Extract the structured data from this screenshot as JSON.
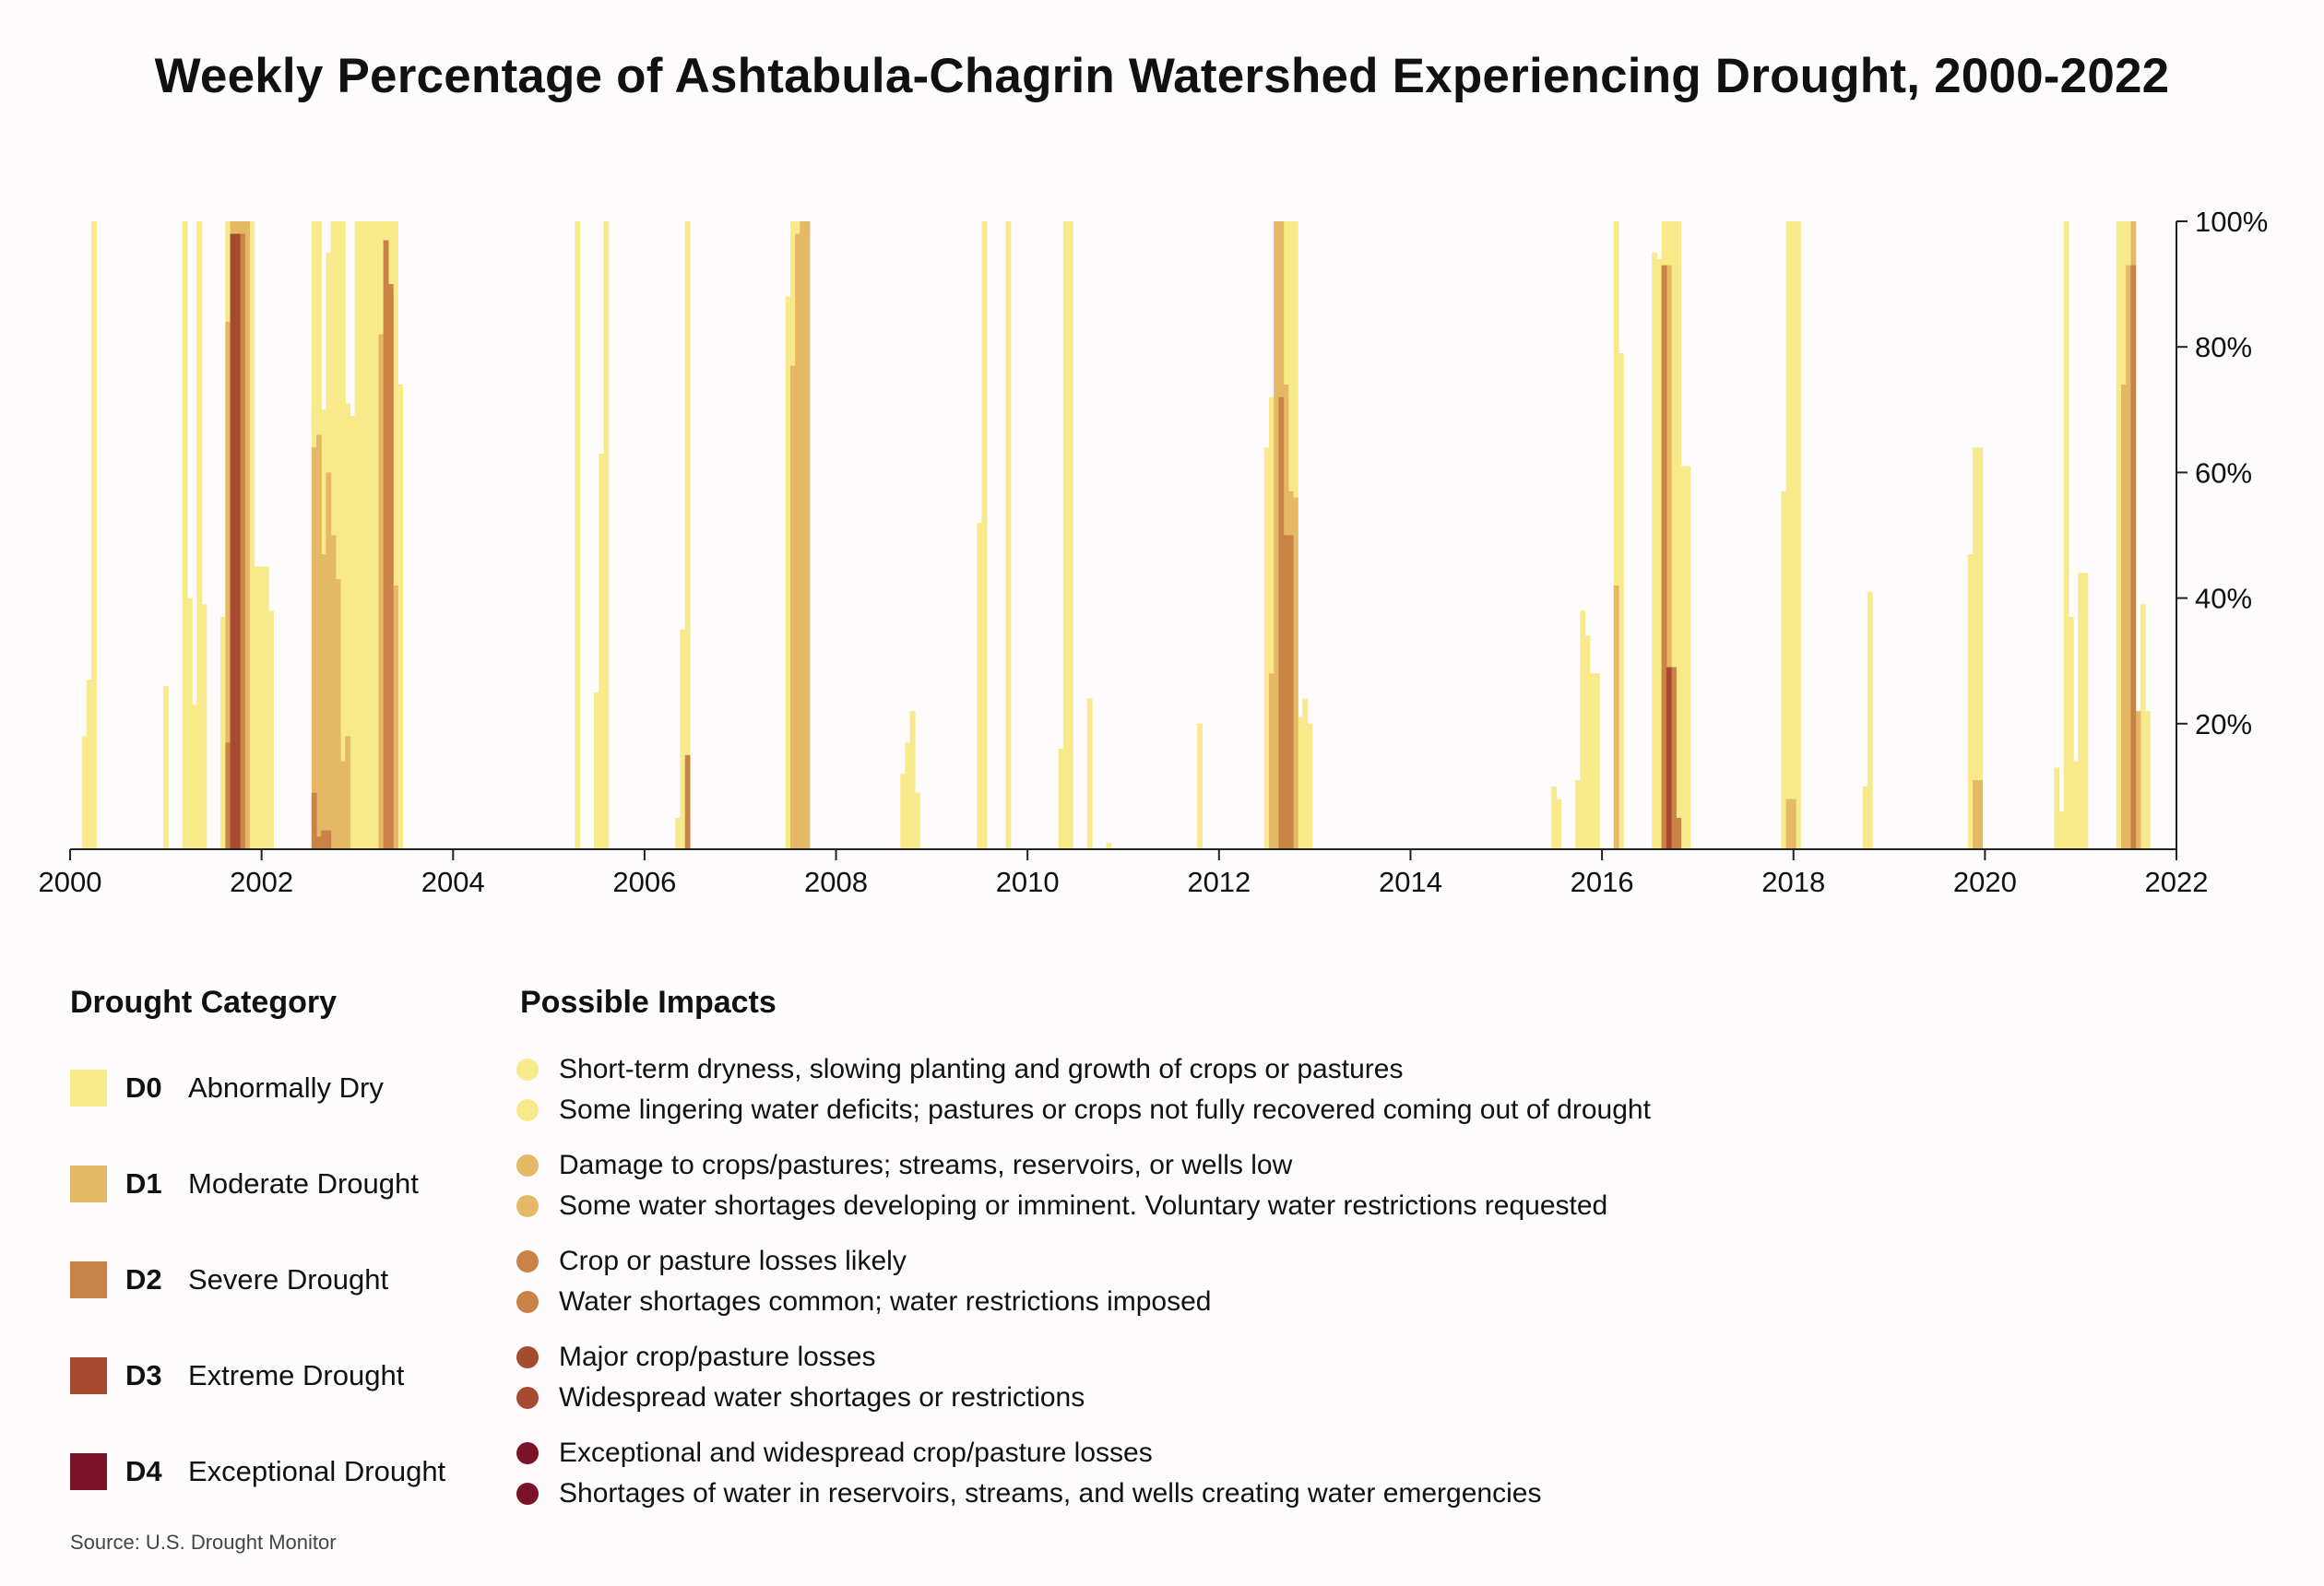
{
  "chart_data": {
    "type": "bar",
    "title": "Weekly Percentage of Ashtabula-Chagrin Watershed Experiencing Drought, 2000-2022",
    "xlabel": "",
    "ylabel": "",
    "xlim": [
      2000,
      2022
    ],
    "ylim": [
      0,
      100
    ],
    "x_ticks": [
      "2000",
      "2002",
      "2004",
      "2006",
      "2008",
      "2010",
      "2012",
      "2014",
      "2016",
      "2018",
      "2020",
      "2022"
    ],
    "y_ticks": [
      "20%",
      "40%",
      "60%",
      "80%",
      "100%"
    ],
    "y_axis_side": "right",
    "value_unit": "percent of watershed area (cumulative by category)",
    "series": [
      {
        "name": "D0",
        "color": "#f8e98a",
        "points": [
          [
            2000.15,
            18
          ],
          [
            2000.2,
            27
          ],
          [
            2000.25,
            100
          ],
          [
            2001.0,
            26
          ],
          [
            2001.2,
            100
          ],
          [
            2001.25,
            40
          ],
          [
            2001.3,
            23
          ],
          [
            2001.35,
            100
          ],
          [
            2001.4,
            39
          ],
          [
            2001.6,
            37
          ],
          [
            2001.65,
            100
          ],
          [
            2001.7,
            100
          ],
          [
            2001.75,
            100
          ],
          [
            2001.8,
            100
          ],
          [
            2001.85,
            100
          ],
          [
            2001.9,
            100
          ],
          [
            2001.95,
            45
          ],
          [
            2002.0,
            45
          ],
          [
            2002.05,
            45
          ],
          [
            2002.1,
            38
          ],
          [
            2002.55,
            100
          ],
          [
            2002.6,
            100
          ],
          [
            2002.65,
            70
          ],
          [
            2002.7,
            95
          ],
          [
            2002.75,
            100
          ],
          [
            2002.8,
            100
          ],
          [
            2002.85,
            100
          ],
          [
            2002.9,
            71
          ],
          [
            2002.95,
            69
          ],
          [
            2003.0,
            100
          ],
          [
            2003.05,
            100
          ],
          [
            2003.1,
            100
          ],
          [
            2003.15,
            100
          ],
          [
            2003.2,
            100
          ],
          [
            2003.25,
            100
          ],
          [
            2003.3,
            100
          ],
          [
            2003.35,
            100
          ],
          [
            2003.4,
            100
          ],
          [
            2003.45,
            74
          ],
          [
            2005.3,
            100
          ],
          [
            2005.5,
            25
          ],
          [
            2005.55,
            63
          ],
          [
            2005.6,
            100
          ],
          [
            2006.35,
            5
          ],
          [
            2006.4,
            35
          ],
          [
            2006.45,
            100
          ],
          [
            2007.5,
            88
          ],
          [
            2007.55,
            100
          ],
          [
            2007.6,
            100
          ],
          [
            2007.65,
            100
          ],
          [
            2007.7,
            100
          ],
          [
            2008.7,
            12
          ],
          [
            2008.75,
            17
          ],
          [
            2008.8,
            22
          ],
          [
            2008.85,
            9
          ],
          [
            2009.5,
            52
          ],
          [
            2009.55,
            100
          ],
          [
            2009.8,
            100
          ],
          [
            2010.35,
            16
          ],
          [
            2010.4,
            100
          ],
          [
            2010.45,
            100
          ],
          [
            2010.65,
            24
          ],
          [
            2010.85,
            1
          ],
          [
            2011.8,
            20
          ],
          [
            2012.5,
            64
          ],
          [
            2012.55,
            72
          ],
          [
            2012.6,
            100
          ],
          [
            2012.65,
            100
          ],
          [
            2012.7,
            100
          ],
          [
            2012.75,
            100
          ],
          [
            2012.8,
            100
          ],
          [
            2012.85,
            21
          ],
          [
            2012.9,
            24
          ],
          [
            2012.95,
            20
          ],
          [
            2015.5,
            10
          ],
          [
            2015.55,
            8
          ],
          [
            2015.75,
            11
          ],
          [
            2015.8,
            38
          ],
          [
            2015.85,
            34
          ],
          [
            2015.9,
            28
          ],
          [
            2015.95,
            28
          ],
          [
            2016.15,
            100
          ],
          [
            2016.2,
            79
          ],
          [
            2016.55,
            95
          ],
          [
            2016.6,
            94
          ],
          [
            2016.65,
            100
          ],
          [
            2016.7,
            100
          ],
          [
            2016.75,
            100
          ],
          [
            2016.8,
            100
          ],
          [
            2016.85,
            61
          ],
          [
            2016.9,
            61
          ],
          [
            2017.9,
            57
          ],
          [
            2017.95,
            100
          ],
          [
            2018.0,
            100
          ],
          [
            2018.05,
            100
          ],
          [
            2018.75,
            10
          ],
          [
            2018.8,
            41
          ],
          [
            2019.85,
            47
          ],
          [
            2019.9,
            64
          ],
          [
            2019.95,
            64
          ],
          [
            2020.75,
            13
          ],
          [
            2020.8,
            6
          ],
          [
            2020.85,
            100
          ],
          [
            2020.9,
            37
          ],
          [
            2020.95,
            14
          ],
          [
            2021.0,
            44
          ],
          [
            2021.05,
            44
          ],
          [
            2021.4,
            100
          ],
          [
            2021.45,
            100
          ],
          [
            2021.5,
            100
          ],
          [
            2021.55,
            100
          ],
          [
            2021.6,
            22
          ],
          [
            2021.65,
            39
          ],
          [
            2021.7,
            22
          ]
        ]
      },
      {
        "name": "D1",
        "color": "#e5b865",
        "points": [
          [
            2001.65,
            84
          ],
          [
            2001.7,
            100
          ],
          [
            2001.75,
            100
          ],
          [
            2001.8,
            100
          ],
          [
            2001.85,
            100
          ],
          [
            2002.55,
            64
          ],
          [
            2002.6,
            66
          ],
          [
            2002.65,
            47
          ],
          [
            2002.7,
            60
          ],
          [
            2002.75,
            50
          ],
          [
            2002.8,
            43
          ],
          [
            2002.85,
            14
          ],
          [
            2002.9,
            18
          ],
          [
            2003.25,
            82
          ],
          [
            2003.3,
            96
          ],
          [
            2003.35,
            88
          ],
          [
            2003.4,
            42
          ],
          [
            2007.55,
            77
          ],
          [
            2007.6,
            98
          ],
          [
            2007.65,
            100
          ],
          [
            2007.7,
            100
          ],
          [
            2012.55,
            28
          ],
          [
            2012.6,
            100
          ],
          [
            2012.65,
            100
          ],
          [
            2012.7,
            74
          ],
          [
            2012.75,
            57
          ],
          [
            2012.8,
            56
          ],
          [
            2016.15,
            42
          ],
          [
            2016.65,
            93
          ],
          [
            2016.7,
            93
          ],
          [
            2016.75,
            29
          ],
          [
            2016.8,
            5
          ],
          [
            2017.95,
            8
          ],
          [
            2018.0,
            8
          ],
          [
            2019.9,
            11
          ],
          [
            2019.95,
            11
          ],
          [
            2021.45,
            74
          ],
          [
            2021.5,
            93
          ],
          [
            2021.55,
            100
          ],
          [
            2021.6,
            22
          ]
        ]
      },
      {
        "name": "D2",
        "color": "#c98347",
        "points": [
          [
            2001.65,
            17
          ],
          [
            2001.7,
            98
          ],
          [
            2001.75,
            98
          ],
          [
            2001.8,
            98
          ],
          [
            2002.55,
            9
          ],
          [
            2002.6,
            2
          ],
          [
            2002.65,
            3
          ],
          [
            2002.7,
            3
          ],
          [
            2003.3,
            97
          ],
          [
            2003.35,
            90
          ],
          [
            2006.45,
            15
          ],
          [
            2012.65,
            72
          ],
          [
            2012.7,
            50
          ],
          [
            2012.75,
            50
          ],
          [
            2016.65,
            93
          ],
          [
            2016.7,
            29
          ],
          [
            2016.75,
            29
          ],
          [
            2016.8,
            5
          ],
          [
            2021.55,
            93
          ]
        ]
      },
      {
        "name": "D3",
        "color": "#a64b32",
        "points": [
          [
            2001.7,
            98
          ],
          [
            2001.75,
            98
          ],
          [
            2016.7,
            29
          ]
        ]
      },
      {
        "name": "D4",
        "color": "#7b1326",
        "points": []
      }
    ]
  },
  "legend": {
    "category_heading": "Drought Category",
    "impacts_heading": "Possible Impacts",
    "categories": [
      {
        "code": "D0",
        "label": "Abnormally Dry",
        "color": "#f8e98a",
        "impacts": [
          "Short-term dryness, slowing planting and growth of crops or pastures",
          "Some lingering water deficits; pastures or crops not fully recovered coming out of drought"
        ]
      },
      {
        "code": "D1",
        "label": "Moderate Drought",
        "color": "#e5b865",
        "impacts": [
          "Damage to crops/pastures; streams, reservoirs, or wells low",
          "Some water shortages developing or imminent. Voluntary water restrictions requested"
        ]
      },
      {
        "code": "D2",
        "label": "Severe Drought",
        "color": "#c98347",
        "impacts": [
          "Crop or pasture losses likely",
          "Water shortages common; water restrictions imposed"
        ]
      },
      {
        "code": "D3",
        "label": "Extreme Drought",
        "color": "#a64b32",
        "impacts": [
          "Major crop/pasture losses",
          "Widespread water shortages or restrictions"
        ]
      },
      {
        "code": "D4",
        "label": "Exceptional Drought",
        "color": "#7b1326",
        "impacts": [
          "Exceptional and widespread crop/pasture losses",
          "Shortages of water in reservoirs, streams, and wells creating water emergencies"
        ]
      }
    ]
  },
  "source": "Source: U.S. Drought Monitor"
}
